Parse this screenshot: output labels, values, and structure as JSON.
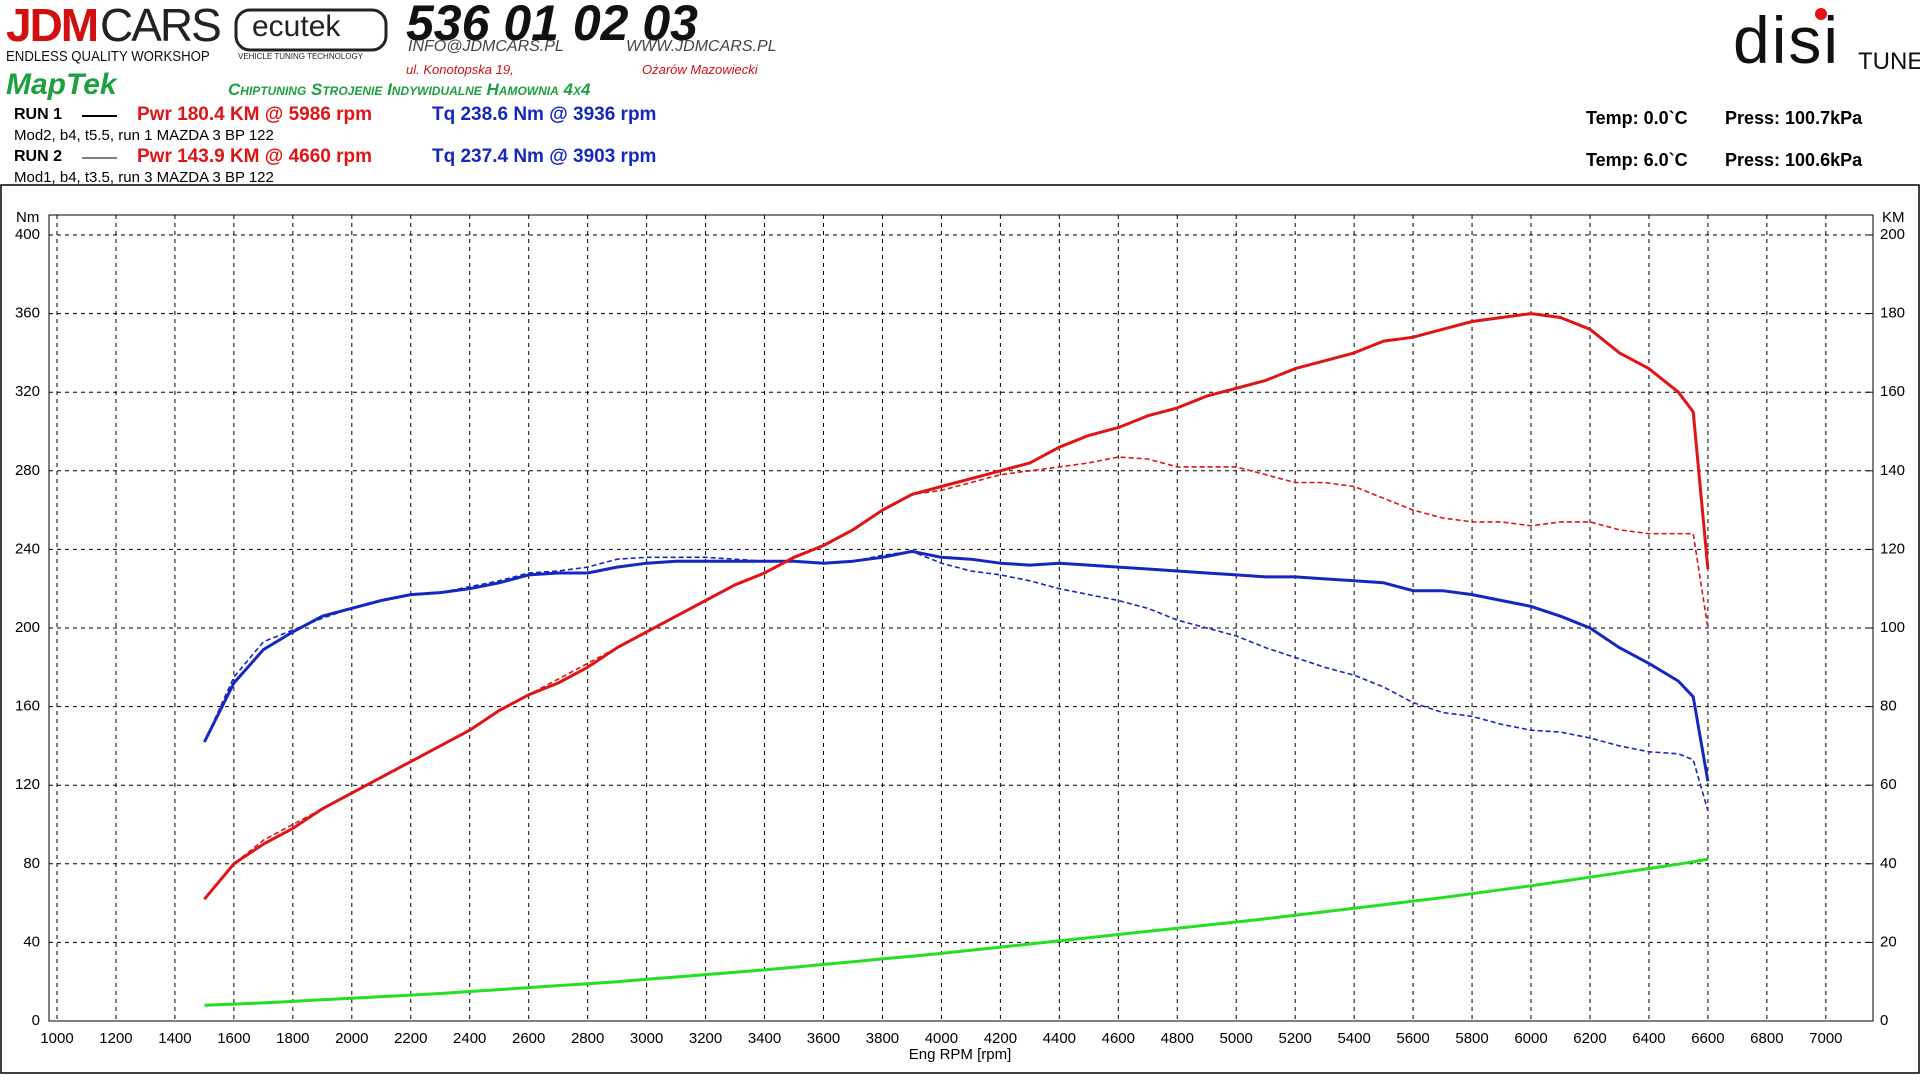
{
  "header": {
    "jdm": "JDM",
    "cars": "CARS",
    "tagline": "ENDLESS QUALITY WORKSHOP",
    "ecutek": "ecutek",
    "ecutek_sub": "VEHICLE TUNING TECHNOLOGY",
    "phone": "536 01 02 03",
    "email": "INFO@JDMCARS.PL",
    "www": "WWW.JDMCARS.PL",
    "street": "ul. Konotopska 19,",
    "city": "Ożarów Mazowiecki",
    "maptek": "MapTek",
    "services": "Chiptuning Strojenie Indywidualne Hamownia 4x4",
    "disi": "disi",
    "tune": "TUNE"
  },
  "runs": [
    {
      "label": "RUN 1",
      "power": "Pwr  180.4 KM @ 5986 rpm",
      "torque": "Tq 238.6 Nm @ 3936 rpm",
      "desc": "Mod2, b4, t5.5, run 1 MAZDA 3 BP 122",
      "temp": "Temp: 0.0`C",
      "press": "Press: 100.7kPa"
    },
    {
      "label": "RUN 2",
      "power": "Pwr  143.9 KM @ 4660 rpm",
      "torque": "Tq 237.4 Nm @ 3903 rpm",
      "desc": "Mod1, b4, t3.5, run 3 MAZDA 3 BP 122",
      "temp": "Temp: 6.0`C",
      "press": "Press: 100.6kPa"
    }
  ],
  "chart_data": {
    "type": "line",
    "xlabel": "Eng RPM [rpm]",
    "ylabel": "Nm",
    "y2label": "KM",
    "xlim": [
      1000,
      7160
    ],
    "xticks": [
      1000,
      1200,
      1400,
      1600,
      1800,
      2000,
      2200,
      2400,
      2600,
      2800,
      3000,
      3200,
      3400,
      3600,
      3800,
      4000,
      4200,
      4400,
      4600,
      4800,
      5000,
      5200,
      5400,
      5600,
      5800,
      6000,
      6200,
      6400,
      6600,
      6800,
      7000
    ],
    "ylim": [
      0,
      400
    ],
    "yticks": [
      0,
      40,
      80,
      120,
      160,
      200,
      240,
      280,
      320,
      360,
      400
    ],
    "y2lim": [
      0,
      200
    ],
    "y2ticks": [
      0,
      20,
      40,
      60,
      80,
      100,
      120,
      140,
      160,
      180,
      200
    ],
    "grid": true,
    "x": [
      1500,
      1600,
      1700,
      1800,
      1900,
      2000,
      2100,
      2200,
      2300,
      2400,
      2500,
      2600,
      2700,
      2800,
      2900,
      3000,
      3100,
      3200,
      3300,
      3400,
      3500,
      3600,
      3700,
      3800,
      3900,
      4000,
      4100,
      4200,
      4300,
      4400,
      4500,
      4600,
      4700,
      4800,
      4900,
      5000,
      5100,
      5200,
      5300,
      5400,
      5500,
      5600,
      5700,
      5800,
      5900,
      6000,
      6100,
      6200,
      6300,
      6400,
      6500,
      6550,
      6600
    ],
    "series": [
      {
        "color": "#1428c0",
        "dashed": false,
        "values": [
          142,
          172,
          189,
          198,
          206,
          210,
          214,
          217,
          218,
          220,
          223,
          227,
          228,
          228,
          231,
          233,
          234,
          234,
          234,
          234,
          234,
          233,
          234,
          236,
          239,
          236,
          235,
          233,
          232,
          233,
          232,
          231,
          230,
          229,
          228,
          227,
          226,
          226,
          225,
          224,
          223,
          219,
          219,
          217,
          214,
          211,
          206,
          200,
          190,
          182,
          173,
          165,
          122
        ]
      },
      {
        "color": "#1428c0",
        "dashed": true,
        "values": [
          142,
          175,
          193,
          199,
          205,
          210,
          214,
          217,
          218,
          221,
          224,
          228,
          229,
          231,
          235,
          236,
          236,
          236,
          235,
          234,
          234,
          233,
          234,
          237,
          239,
          233,
          229,
          227,
          224,
          220,
          217,
          214,
          210,
          204,
          200,
          196,
          190,
          185,
          180,
          176,
          170,
          162,
          157,
          155,
          151,
          148,
          147,
          144,
          140,
          137,
          136,
          133,
          107
        ]
      },
      {
        "color": "#e01414",
        "dashed": false,
        "axis": "y2",
        "values": [
          31,
          40,
          45,
          49,
          54,
          58,
          62,
          66,
          70,
          74,
          79,
          83,
          86,
          90,
          95,
          99,
          103,
          107,
          111,
          114,
          118,
          121,
          125,
          130,
          134,
          136,
          138,
          140,
          142,
          146,
          149,
          151,
          154,
          156,
          159,
          161,
          163,
          166,
          168,
          170,
          173,
          174,
          176,
          178,
          179,
          180,
          179,
          176,
          170,
          166,
          160,
          155,
          115
        ]
      },
      {
        "color": "#e01414",
        "dashed": true,
        "axis": "y2",
        "values": [
          31,
          40,
          46,
          50,
          54,
          58,
          62,
          66,
          70,
          74,
          79,
          83,
          87,
          91,
          95,
          99,
          103,
          107,
          111,
          114,
          118,
          121,
          125,
          130,
          134,
          135,
          137,
          139,
          140,
          141,
          142,
          143.5,
          143,
          141,
          141,
          141,
          139,
          137,
          137,
          136,
          133,
          130,
          128,
          127,
          127,
          126,
          127,
          127,
          125,
          124,
          124,
          124,
          100
        ]
      },
      {
        "color": "#22e022",
        "dashed": false,
        "axis": "y2",
        "values": [
          4,
          4.3,
          4.6,
          5,
          5.4,
          5.8,
          6.2,
          6.6,
          7,
          7.5,
          8,
          8.5,
          9,
          9.5,
          10,
          10.6,
          11.2,
          11.8,
          12.4,
          13,
          13.7,
          14.4,
          15.1,
          15.8,
          16.5,
          17.2,
          18,
          18.8,
          19.6,
          20.4,
          21.2,
          22,
          22.8,
          23.6,
          24.4,
          25.2,
          26,
          26.9,
          27.8,
          28.7,
          29.6,
          30.5,
          31.4,
          32.4,
          33.4,
          34.4,
          35.5,
          36.6,
          37.7,
          38.8,
          39.9,
          40.5,
          41.2
        ]
      }
    ]
  }
}
